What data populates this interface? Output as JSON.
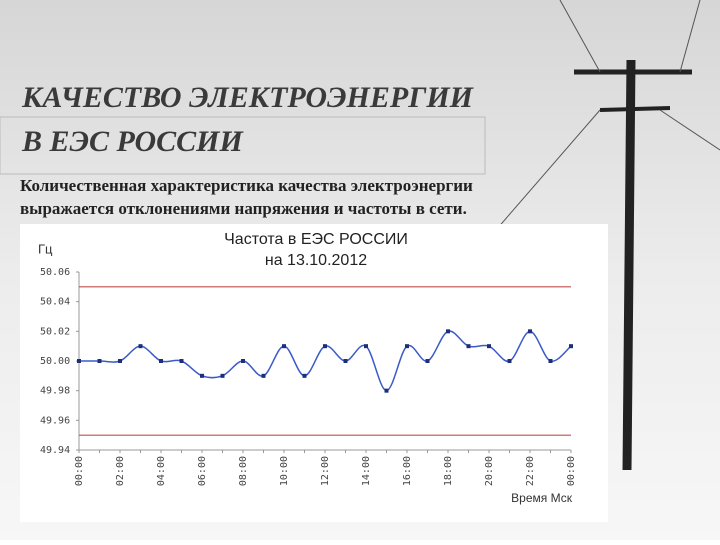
{
  "slide": {
    "title": [
      "КАЧЕСТВО ЭЛЕКТРОЭНЕРГИИ",
      "В ЕЭС РОССИИ"
    ],
    "text": [
      "Количественная  характеристика  качества  электроэнергии",
      "выражается отклонениями напряжения и частоты в сети."
    ]
  },
  "chart_data": {
    "type": "line",
    "title": "Частота в ЕЭС РОССИИ",
    "subtitle": "на 13.10.2012",
    "y_label": "Гц",
    "x_label": "Время Мск",
    "categories": [
      "00:00",
      null,
      "02:00",
      null,
      "04:00",
      null,
      "06:00",
      null,
      "08:00",
      null,
      "10:00",
      null,
      "12:00",
      null,
      "14:00",
      null,
      "16:00",
      null,
      "18:00",
      null,
      "20:00",
      null,
      "22:00",
      null,
      "00:00"
    ],
    "values": [
      50.0,
      50.0,
      50.0,
      50.01,
      50.0,
      50.0,
      49.99,
      49.99,
      50.0,
      49.99,
      50.01,
      49.99,
      50.01,
      50.0,
      50.01,
      49.98,
      50.01,
      50.0,
      50.02,
      50.01,
      50.01,
      50.0,
      50.02,
      50.0,
      50.01
    ],
    "color": "#3a5bc7",
    "marker_color": "#1c2f7a",
    "reference_lines": {
      "values": [
        50.05,
        49.95
      ],
      "color": "#c0504d"
    },
    "ylim": [
      49.94,
      50.06
    ],
    "yticks": [
      49.94,
      49.96,
      49.98,
      {
        "value": 50,
        "label": "50.00"
      },
      50.02,
      50.04,
      50.06
    ],
    "grid": false
  }
}
